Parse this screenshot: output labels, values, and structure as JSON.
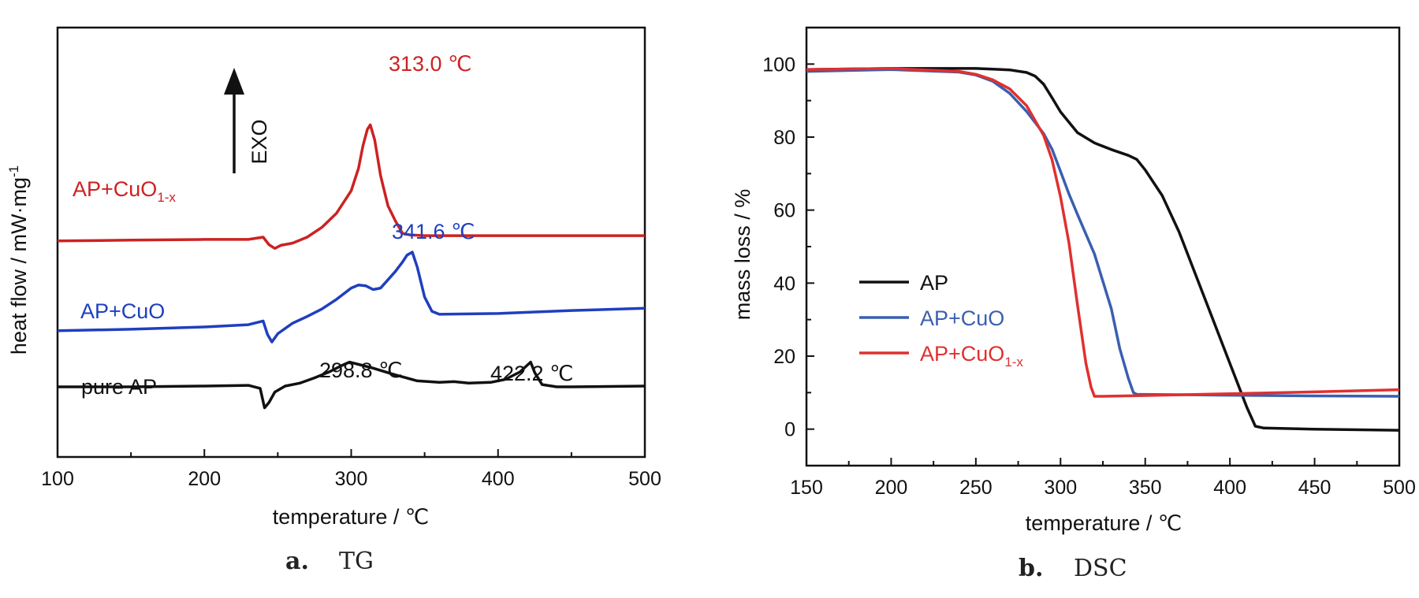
{
  "colors": {
    "AP": "#111111",
    "AP+CuO": "#1f3fbf",
    "AP+CuO1-x": "#cc2222",
    "legend_blue": "#3a5fb0",
    "legend_red": "#e03030"
  },
  "chart_data": [
    {
      "id": "a",
      "type": "line",
      "caption_letter": "a.",
      "caption_text": "TG",
      "xlabel": "temperature / ℃",
      "ylabel": "heat flow / mW·mg",
      "ylabel_sup": "-1",
      "xlim": [
        100,
        500
      ],
      "xticks": [
        "100",
        "200",
        "300",
        "400",
        "500"
      ],
      "grid": false,
      "arrow_label": "EXO",
      "series": [
        {
          "name": "AP+CuO",
          "label_sub": "1-x",
          "base_name": "AP+CuO",
          "color_key": "AP+CuO1-x",
          "label_color": "#cc2222",
          "x": [
            100,
            150,
            200,
            230,
            240,
            244,
            248,
            252,
            260,
            270,
            280,
            290,
            300,
            305,
            308,
            311,
            313,
            316,
            320,
            325,
            330,
            335,
            340,
            350,
            400,
            450,
            500
          ],
          "y": [
            -25,
            -24,
            -23,
            -23,
            -20,
            -30,
            -35,
            -31,
            -28,
            -20,
            -7,
            12,
            42,
            72,
            102,
            124,
            130,
            110,
            62,
            22,
            2,
            -15,
            -17,
            -18,
            -18,
            -18,
            -18
          ],
          "annotations": [
            {
              "text": "313.0 ℃"
            }
          ]
        },
        {
          "name": "AP+CuO",
          "base_name": "AP+CuO",
          "color_key": "AP+CuO",
          "label_color": "#1f3fbf",
          "x": [
            100,
            150,
            200,
            230,
            240,
            243,
            246,
            250,
            260,
            270,
            280,
            290,
            300,
            305,
            310,
            315,
            320,
            330,
            335,
            338,
            341.6,
            345,
            350,
            355,
            360,
            400,
            450,
            500
          ],
          "y": [
            -145,
            -143,
            -140,
            -137,
            -132,
            -150,
            -160,
            -149,
            -135,
            -126,
            -116,
            -103,
            -88,
            -84,
            -85,
            -90,
            -88,
            -66,
            -53,
            -44,
            -40,
            -60,
            -100,
            -119,
            -123,
            -122,
            -118,
            -115
          ],
          "annotations": [
            {
              "text": "341.6 ℃"
            }
          ]
        },
        {
          "name": "pure AP",
          "base_name": "pure AP",
          "color_key": "AP",
          "label_color": "#111111",
          "x": [
            100,
            150,
            200,
            230,
            238,
            241,
            244,
            248,
            255,
            265,
            275,
            285,
            293,
            298.8,
            305,
            315,
            330,
            345,
            360,
            370,
            380,
            395,
            405,
            415,
            420,
            422.2,
            425,
            430,
            440,
            450,
            500
          ],
          "y": [
            -220,
            -220,
            -219,
            -218,
            -222,
            -248,
            -241,
            -227,
            -219,
            -215,
            -208,
            -200,
            -192,
            -187,
            -190,
            -195,
            -204,
            -212,
            -214,
            -213,
            -215,
            -214,
            -210,
            -200,
            -191,
            -187,
            -201,
            -217,
            -220,
            -220,
            -219
          ],
          "annotations": [
            {
              "text": "298.8 ℃"
            },
            {
              "text": "422.2 ℃"
            }
          ]
        }
      ]
    },
    {
      "id": "b",
      "type": "line",
      "caption_letter": "b.",
      "caption_text": "DSC",
      "xlabel": "temperature / ℃",
      "ylabel": "mass loss / %",
      "xlim": [
        150,
        500
      ],
      "ylim": [
        -10,
        110
      ],
      "xticks": [
        "150",
        "200",
        "250",
        "300",
        "350",
        "400",
        "450",
        "500"
      ],
      "yticks": [
        "0",
        "20",
        "40",
        "60",
        "80",
        "100"
      ],
      "grid": false,
      "legend_position": "center-left",
      "series": [
        {
          "name": "AP",
          "color_key": "AP",
          "x": [
            150,
            200,
            250,
            270,
            280,
            285,
            290,
            295,
            300,
            310,
            320,
            330,
            340,
            345,
            350,
            360,
            370,
            380,
            390,
            400,
            405,
            410,
            415,
            420,
            450,
            500
          ],
          "y": [
            98.5,
            98.8,
            98.8,
            98.4,
            97.7,
            96.7,
            94.5,
            90.8,
            86.9,
            81.2,
            78.4,
            76.6,
            75.0,
            73.9,
            71.0,
            64.0,
            54.0,
            42.0,
            30.0,
            18.0,
            12.0,
            6.0,
            0.8,
            0.3,
            0.0,
            -0.3
          ],
          "legend": "AP"
        },
        {
          "name": "AP+CuO",
          "color_key": "legend_blue",
          "x": [
            150,
            200,
            240,
            250,
            260,
            270,
            280,
            290,
            295,
            300,
            305,
            310,
            320,
            330,
            335,
            340,
            343,
            345,
            350,
            400,
            450,
            500
          ],
          "y": [
            98,
            98.5,
            97.8,
            97,
            95.3,
            92,
            87,
            81,
            76.7,
            70.6,
            64.4,
            58.8,
            48,
            33,
            22,
            14,
            10,
            9.5,
            9.5,
            9.3,
            9.1,
            9
          ],
          "legend": "AP+CuO",
          "legend_sub": ""
        },
        {
          "name": "AP+CuO",
          "color_key": "legend_red",
          "x": [
            150,
            200,
            240,
            250,
            260,
            270,
            280,
            290,
            295,
            300,
            305,
            310,
            315,
            318,
            320,
            325,
            350,
            400,
            450,
            500
          ],
          "y": [
            98.5,
            98.8,
            98,
            97.2,
            95.7,
            93.2,
            88.6,
            80.5,
            73.8,
            63.6,
            51,
            34,
            18,
            11.5,
            9,
            9,
            9.2,
            9.7,
            10.2,
            10.8
          ],
          "legend": "AP+CuO",
          "legend_sub": "1-x"
        }
      ]
    }
  ]
}
